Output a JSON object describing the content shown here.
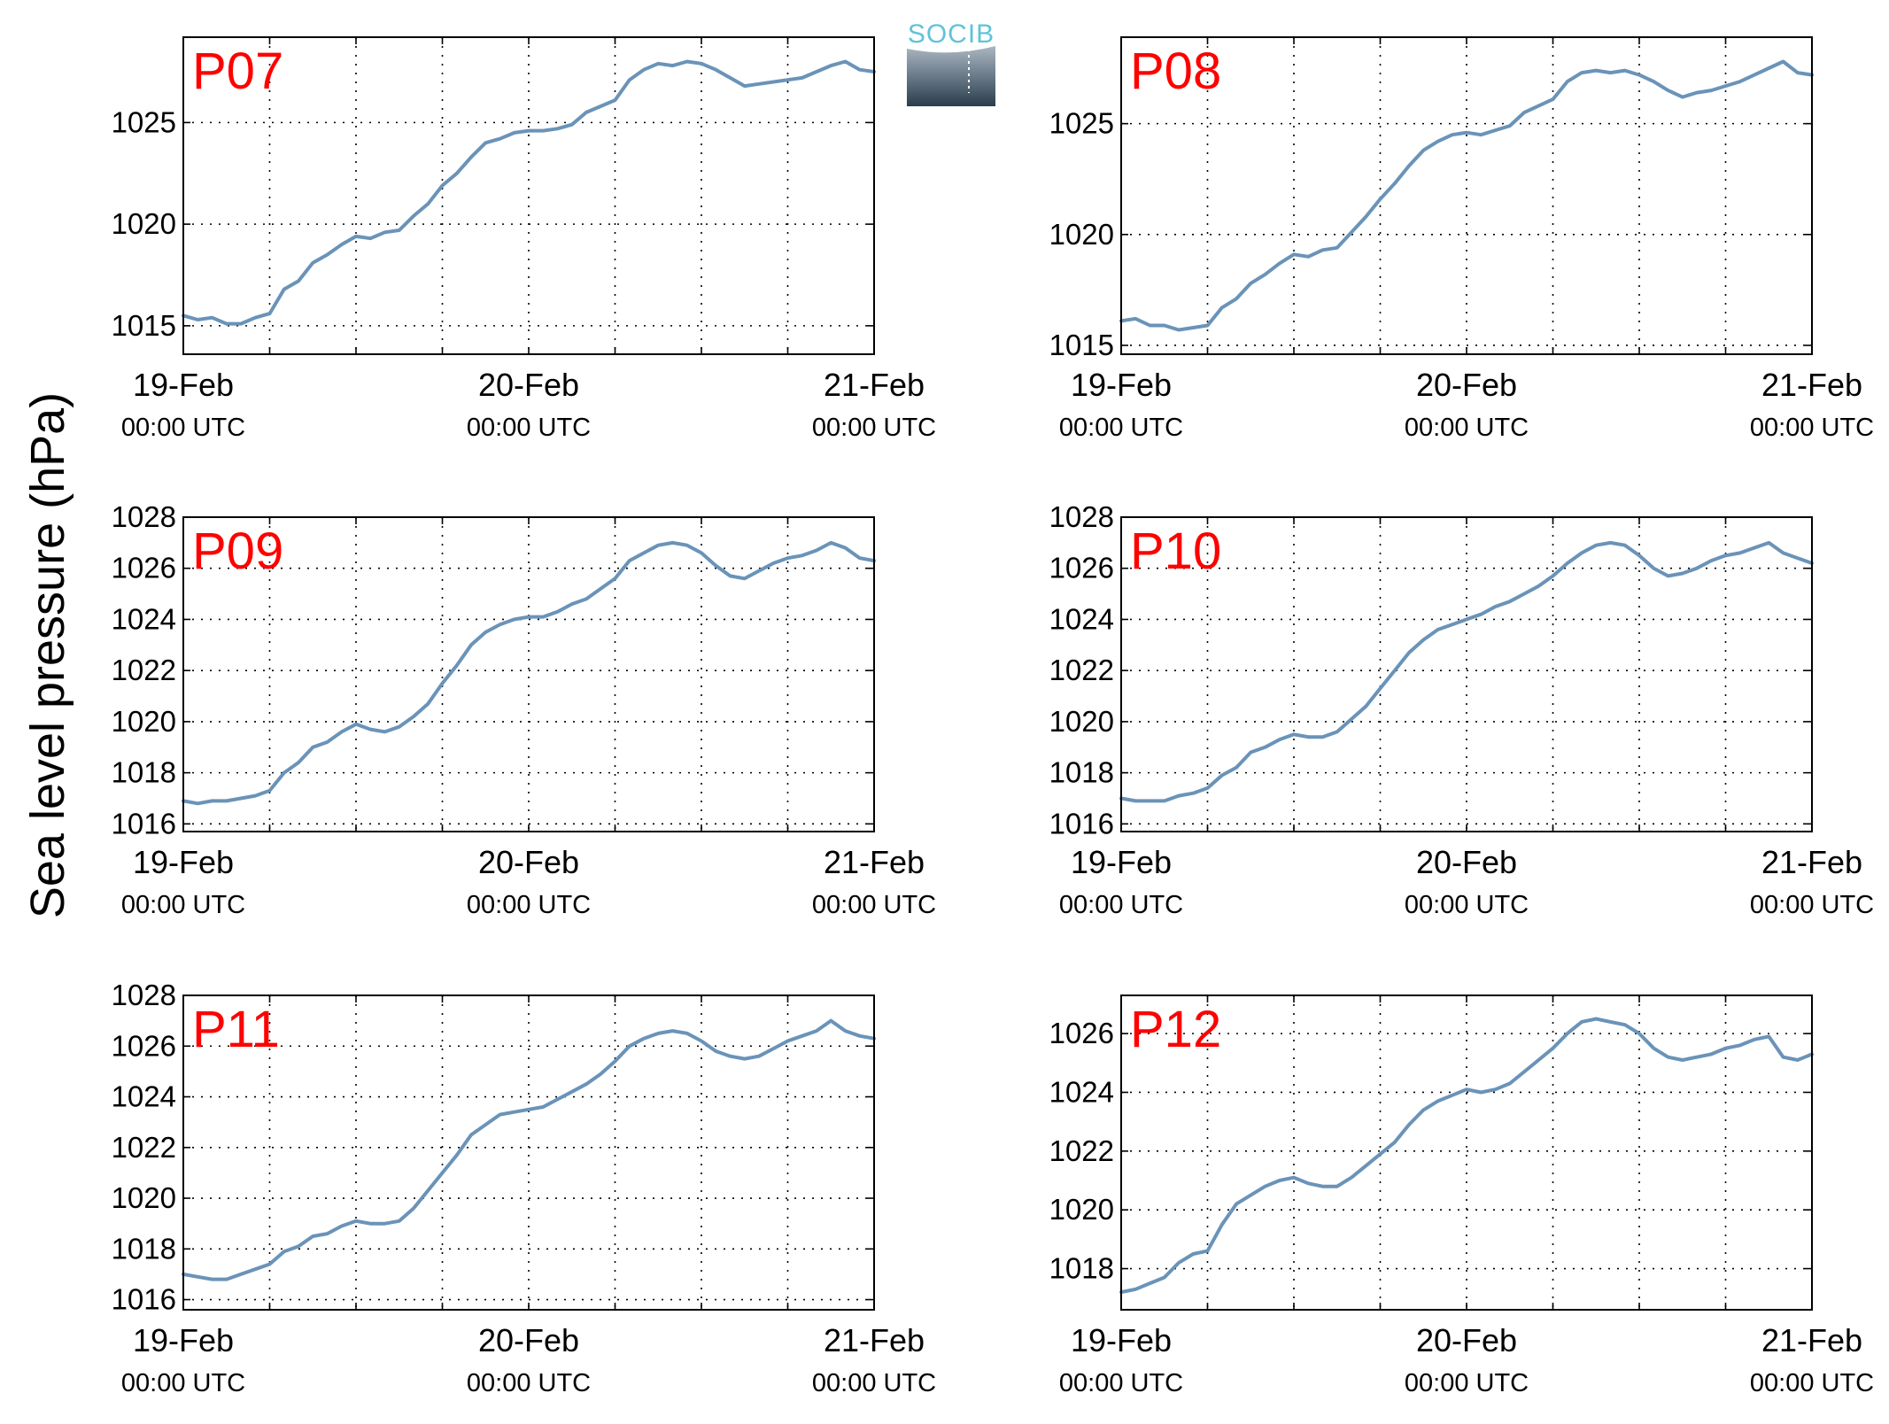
{
  "figure": {
    "ylabel": "Sea level pressure (hPa)",
    "logo_text": "SOCIB",
    "line_color": "#6a93b8",
    "label_color": "#ff0000"
  },
  "chart_data": [
    {
      "type": "line",
      "label": "P07",
      "x_ticks": [
        {
          "day": "19-Feb",
          "time": "00:00 UTC"
        },
        {
          "day": "20-Feb",
          "time": "00:00 UTC"
        },
        {
          "day": "21-Feb",
          "time": "00:00 UTC"
        }
      ],
      "yticks": [
        1015,
        1020,
        1025
      ],
      "ylim": [
        1013.6,
        1029.2
      ],
      "xlim": [
        0,
        48
      ],
      "grid": true,
      "x_hours": [
        0,
        1,
        2,
        3,
        4,
        5,
        6,
        7,
        8,
        9,
        10,
        11,
        12,
        13,
        14,
        15,
        16,
        17,
        18,
        19,
        20,
        21,
        22,
        23,
        24,
        25,
        26,
        27,
        28,
        29,
        30,
        31,
        32,
        33,
        34,
        35,
        36,
        37,
        38,
        39,
        40,
        41,
        42,
        43,
        44,
        45,
        46,
        47,
        48
      ],
      "y": [
        1015.5,
        1015.3,
        1015.4,
        1015.1,
        1015.1,
        1015.4,
        1015.6,
        1016.8,
        1017.2,
        1018.1,
        1018.5,
        1019.0,
        1019.4,
        1019.3,
        1019.6,
        1019.7,
        1020.4,
        1021.0,
        1021.9,
        1022.5,
        1023.3,
        1024.0,
        1024.2,
        1024.5,
        1024.6,
        1024.6,
        1024.7,
        1024.9,
        1025.5,
        1025.8,
        1026.1,
        1027.1,
        1027.6,
        1027.9,
        1027.8,
        1028.0,
        1027.9,
        1027.6,
        1027.2,
        1026.8,
        1026.9,
        1027.0,
        1027.1,
        1027.2,
        1027.5,
        1027.8,
        1028.0,
        1027.6,
        1027.5
      ]
    },
    {
      "type": "line",
      "label": "P08",
      "x_ticks": [
        {
          "day": "19-Feb",
          "time": "00:00 UTC"
        },
        {
          "day": "20-Feb",
          "time": "00:00 UTC"
        },
        {
          "day": "21-Feb",
          "time": "00:00 UTC"
        }
      ],
      "yticks": [
        1015,
        1020,
        1025
      ],
      "ylim": [
        1014.6,
        1028.9
      ],
      "xlim": [
        0,
        48
      ],
      "grid": true,
      "x_hours": [
        0,
        1,
        2,
        3,
        4,
        5,
        6,
        7,
        8,
        9,
        10,
        11,
        12,
        13,
        14,
        15,
        16,
        17,
        18,
        19,
        20,
        21,
        22,
        23,
        24,
        25,
        26,
        27,
        28,
        29,
        30,
        31,
        32,
        33,
        34,
        35,
        36,
        37,
        38,
        39,
        40,
        41,
        42,
        43,
        44,
        45,
        46,
        47,
        48
      ],
      "y": [
        1016.1,
        1016.2,
        1015.9,
        1015.9,
        1015.7,
        1015.8,
        1015.9,
        1016.7,
        1017.1,
        1017.8,
        1018.2,
        1018.7,
        1019.1,
        1019.0,
        1019.3,
        1019.4,
        1020.1,
        1020.8,
        1021.6,
        1022.3,
        1023.1,
        1023.8,
        1024.2,
        1024.5,
        1024.6,
        1024.5,
        1024.7,
        1024.9,
        1025.5,
        1025.8,
        1026.1,
        1026.9,
        1027.3,
        1027.4,
        1027.3,
        1027.4,
        1027.2,
        1026.9,
        1026.5,
        1026.2,
        1026.4,
        1026.5,
        1026.7,
        1026.9,
        1027.2,
        1027.5,
        1027.8,
        1027.3,
        1027.2
      ]
    },
    {
      "type": "line",
      "label": "P09",
      "x_ticks": [
        {
          "day": "19-Feb",
          "time": "00:00 UTC"
        },
        {
          "day": "20-Feb",
          "time": "00:00 UTC"
        },
        {
          "day": "21-Feb",
          "time": "00:00 UTC"
        }
      ],
      "yticks": [
        1016,
        1018,
        1020,
        1022,
        1024,
        1026,
        1028
      ],
      "ylim": [
        1015.7,
        1028.0
      ],
      "xlim": [
        0,
        48
      ],
      "grid": true,
      "x_hours": [
        0,
        1,
        2,
        3,
        4,
        5,
        6,
        7,
        8,
        9,
        10,
        11,
        12,
        13,
        14,
        15,
        16,
        17,
        18,
        19,
        20,
        21,
        22,
        23,
        24,
        25,
        26,
        27,
        28,
        29,
        30,
        31,
        32,
        33,
        34,
        35,
        36,
        37,
        38,
        39,
        40,
        41,
        42,
        43,
        44,
        45,
        46,
        47,
        48
      ],
      "y": [
        1016.9,
        1016.8,
        1016.9,
        1016.9,
        1017.0,
        1017.1,
        1017.3,
        1018.0,
        1018.4,
        1019.0,
        1019.2,
        1019.6,
        1019.9,
        1019.7,
        1019.6,
        1019.8,
        1020.2,
        1020.7,
        1021.5,
        1022.2,
        1023.0,
        1023.5,
        1023.8,
        1024.0,
        1024.1,
        1024.1,
        1024.3,
        1024.6,
        1024.8,
        1025.2,
        1025.6,
        1026.3,
        1026.6,
        1026.9,
        1027.0,
        1026.9,
        1026.6,
        1026.1,
        1025.7,
        1025.6,
        1025.9,
        1026.2,
        1026.4,
        1026.5,
        1026.7,
        1027.0,
        1026.8,
        1026.4,
        1026.3
      ]
    },
    {
      "type": "line",
      "label": "P10",
      "x_ticks": [
        {
          "day": "19-Feb",
          "time": "00:00 UTC"
        },
        {
          "day": "20-Feb",
          "time": "00:00 UTC"
        },
        {
          "day": "21-Feb",
          "time": "00:00 UTC"
        }
      ],
      "yticks": [
        1016,
        1018,
        1020,
        1022,
        1024,
        1026,
        1028
      ],
      "ylim": [
        1015.7,
        1028.0
      ],
      "xlim": [
        0,
        48
      ],
      "grid": true,
      "x_hours": [
        0,
        1,
        2,
        3,
        4,
        5,
        6,
        7,
        8,
        9,
        10,
        11,
        12,
        13,
        14,
        15,
        16,
        17,
        18,
        19,
        20,
        21,
        22,
        23,
        24,
        25,
        26,
        27,
        28,
        29,
        30,
        31,
        32,
        33,
        34,
        35,
        36,
        37,
        38,
        39,
        40,
        41,
        42,
        43,
        44,
        45,
        46,
        47,
        48
      ],
      "y": [
        1017.0,
        1016.9,
        1016.9,
        1016.9,
        1017.1,
        1017.2,
        1017.4,
        1017.9,
        1018.2,
        1018.8,
        1019.0,
        1019.3,
        1019.5,
        1019.4,
        1019.4,
        1019.6,
        1020.1,
        1020.6,
        1021.3,
        1022.0,
        1022.7,
        1023.2,
        1023.6,
        1023.8,
        1024.0,
        1024.2,
        1024.5,
        1024.7,
        1025.0,
        1025.3,
        1025.7,
        1026.2,
        1026.6,
        1026.9,
        1027.0,
        1026.9,
        1026.5,
        1026.0,
        1025.7,
        1025.8,
        1026.0,
        1026.3,
        1026.5,
        1026.6,
        1026.8,
        1027.0,
        1026.6,
        1026.4,
        1026.2
      ]
    },
    {
      "type": "line",
      "label": "P11",
      "x_ticks": [
        {
          "day": "19-Feb",
          "time": "00:00 UTC"
        },
        {
          "day": "20-Feb",
          "time": "00:00 UTC"
        },
        {
          "day": "21-Feb",
          "time": "00:00 UTC"
        }
      ],
      "yticks": [
        1016,
        1018,
        1020,
        1022,
        1024,
        1026,
        1028
      ],
      "ylim": [
        1015.6,
        1028.0
      ],
      "xlim": [
        0,
        48
      ],
      "grid": true,
      "x_hours": [
        0,
        1,
        2,
        3,
        4,
        5,
        6,
        7,
        8,
        9,
        10,
        11,
        12,
        13,
        14,
        15,
        16,
        17,
        18,
        19,
        20,
        21,
        22,
        23,
        24,
        25,
        26,
        27,
        28,
        29,
        30,
        31,
        32,
        33,
        34,
        35,
        36,
        37,
        38,
        39,
        40,
        41,
        42,
        43,
        44,
        45,
        46,
        47,
        48
      ],
      "y": [
        1017.0,
        1016.9,
        1016.8,
        1016.8,
        1017.0,
        1017.2,
        1017.4,
        1017.9,
        1018.1,
        1018.5,
        1018.6,
        1018.9,
        1019.1,
        1019.0,
        1019.0,
        1019.1,
        1019.6,
        1020.3,
        1021.0,
        1021.7,
        1022.5,
        1022.9,
        1023.3,
        1023.4,
        1023.5,
        1023.6,
        1023.9,
        1024.2,
        1024.5,
        1024.9,
        1025.4,
        1026.0,
        1026.3,
        1026.5,
        1026.6,
        1026.5,
        1026.2,
        1025.8,
        1025.6,
        1025.5,
        1025.6,
        1025.9,
        1026.2,
        1026.4,
        1026.6,
        1027.0,
        1026.6,
        1026.4,
        1026.3
      ]
    },
    {
      "type": "line",
      "label": "P12",
      "x_ticks": [
        {
          "day": "19-Feb",
          "time": "00:00 UTC"
        },
        {
          "day": "20-Feb",
          "time": "00:00 UTC"
        },
        {
          "day": "21-Feb",
          "time": "00:00 UTC"
        }
      ],
      "yticks": [
        1018,
        1020,
        1022,
        1024,
        1026
      ],
      "ylim": [
        1016.6,
        1027.3
      ],
      "xlim": [
        0,
        48
      ],
      "grid": true,
      "x_hours": [
        0,
        1,
        2,
        3,
        4,
        5,
        6,
        7,
        8,
        9,
        10,
        11,
        12,
        13,
        14,
        15,
        16,
        17,
        18,
        19,
        20,
        21,
        22,
        23,
        24,
        25,
        26,
        27,
        28,
        29,
        30,
        31,
        32,
        33,
        34,
        35,
        36,
        37,
        38,
        39,
        40,
        41,
        42,
        43,
        44,
        45,
        46,
        47,
        48
      ],
      "y": [
        1017.2,
        1017.3,
        1017.5,
        1017.7,
        1018.2,
        1018.5,
        1018.6,
        1019.5,
        1020.2,
        1020.5,
        1020.8,
        1021.0,
        1021.1,
        1020.9,
        1020.8,
        1020.8,
        1021.1,
        1021.5,
        1021.9,
        1022.3,
        1022.9,
        1023.4,
        1023.7,
        1023.9,
        1024.1,
        1024.0,
        1024.1,
        1024.3,
        1024.7,
        1025.1,
        1025.5,
        1026.0,
        1026.4,
        1026.5,
        1026.4,
        1026.3,
        1026.0,
        1025.5,
        1025.2,
        1025.1,
        1025.2,
        1025.3,
        1025.5,
        1025.6,
        1025.8,
        1025.9,
        1025.2,
        1025.1,
        1025.3
      ]
    }
  ]
}
